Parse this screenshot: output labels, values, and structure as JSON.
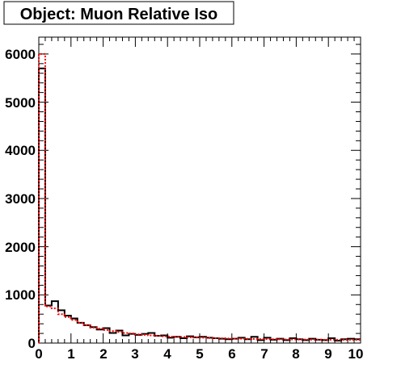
{
  "chart_data": {
    "type": "histogram",
    "title": "Object: Muon Relative Iso",
    "xlabel": "",
    "ylabel": "",
    "xlim": [
      0,
      10
    ],
    "ylim": [
      0,
      6350
    ],
    "x_ticks": [
      0,
      1,
      2,
      3,
      4,
      5,
      6,
      7,
      8,
      9,
      10
    ],
    "x_tick_labels": [
      "0",
      "1",
      "2",
      "3",
      "4",
      "5",
      "6",
      "7",
      "8",
      "9",
      "10"
    ],
    "y_ticks": [
      0,
      1000,
      2000,
      3000,
      4000,
      5000,
      6000
    ],
    "y_tick_labels": [
      "0",
      "1000",
      "2000",
      "3000",
      "4000",
      "5000",
      "6000"
    ],
    "bin_width": 0.2,
    "grid": false,
    "series": [
      {
        "color": "#000000",
        "style": "solid",
        "values": [
          5700,
          780,
          870,
          680,
          570,
          510,
          420,
          370,
          330,
          280,
          310,
          210,
          260,
          160,
          190,
          170,
          190,
          210,
          150,
          160,
          110,
          130,
          100,
          140,
          120,
          130,
          110,
          100,
          90,
          80,
          90,
          110,
          80,
          130,
          60,
          110,
          70,
          90,
          60,
          100,
          80,
          60,
          90,
          70,
          60,
          100,
          50,
          80,
          90,
          80
        ]
      },
      {
        "color": "#ff0000",
        "style": "dotted",
        "values": [
          6000,
          760,
          720,
          600,
          540,
          480,
          420,
          370,
          320,
          300,
          270,
          250,
          230,
          210,
          200,
          180,
          170,
          160,
          150,
          140,
          135,
          130,
          125,
          120,
          115,
          110,
          105,
          100,
          98,
          95,
          92,
          90,
          88,
          86,
          84,
          82,
          80,
          78,
          76,
          75,
          74,
          73,
          72,
          71,
          70,
          70,
          69,
          68,
          68,
          67
        ]
      }
    ]
  }
}
